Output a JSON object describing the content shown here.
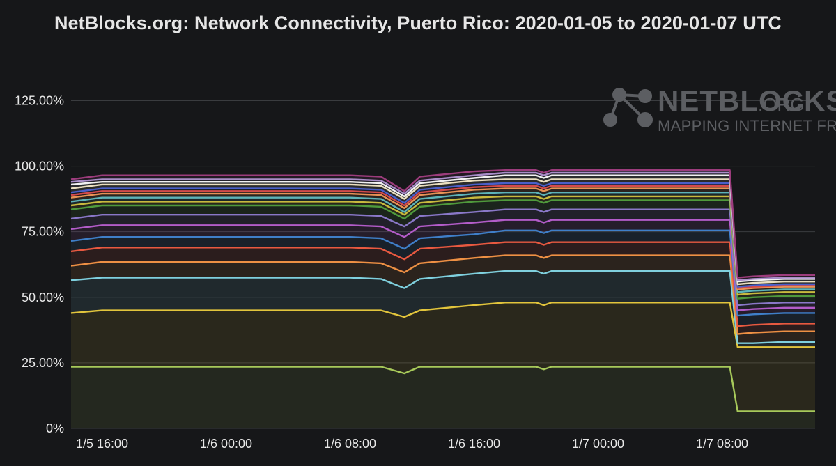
{
  "chart_data": {
    "type": "area",
    "title": "NetBlocks.org: Network Connectivity, Puerto Rico: 2020-01-05 to 2020-01-07 UTC",
    "xlabel": "",
    "ylabel": "",
    "stacked": true,
    "grid": true,
    "legend": "none",
    "x": [
      "1/5 14:00",
      "1/5 16:00",
      "1/6 00:00",
      "1/6 08:00",
      "1/6 10:00",
      "1/6 11:30",
      "1/6 12:30",
      "1/6 16:00",
      "1/6 18:00",
      "1/6 20:00",
      "1/6 20:30",
      "1/6 21:00",
      "1/7 00:00",
      "1/7 08:00",
      "1/7 08:30",
      "1/7 09:00",
      "1/7 10:00",
      "1/7 12:00",
      "1/7 14:00"
    ],
    "x_ticks": [
      "1/5 16:00",
      "1/6 00:00",
      "1/6 08:00",
      "1/6 16:00",
      "1/7 00:00",
      "1/7 08:00"
    ],
    "y_ticks": [
      "0%",
      "25.00%",
      "50.00%",
      "75.00%",
      "100.00%",
      "125.00%"
    ],
    "ylim": [
      0,
      140
    ],
    "series": [
      {
        "color": "#a7c95a",
        "values": [
          23.5,
          23.5,
          23.5,
          23.5,
          23.5,
          21,
          23.5,
          23.5,
          23.5,
          23.5,
          22.5,
          23.5,
          23.5,
          23.5,
          23.5,
          6.5,
          6.5,
          6.5,
          6.5
        ]
      },
      {
        "color": "#e2c53c",
        "values": [
          44,
          45,
          45,
          45,
          45,
          42.5,
          45,
          47,
          48,
          48,
          47,
          48,
          48,
          48,
          48,
          31,
          31,
          31,
          31
        ]
      },
      {
        "color": "#7fd0de",
        "values": [
          56.5,
          57.5,
          57.5,
          57.5,
          57,
          53.5,
          57,
          59,
          60,
          60,
          59,
          60,
          60,
          60,
          60,
          32.5,
          32.5,
          33,
          33
        ]
      },
      {
        "color": "#ee9044",
        "values": [
          62,
          63.5,
          63.5,
          63.5,
          63,
          59.5,
          63,
          65,
          66,
          66,
          65,
          66,
          66,
          66,
          66,
          36,
          36.5,
          37,
          37
        ]
      },
      {
        "color": "#e85940",
        "values": [
          67.5,
          69,
          69,
          69,
          68.5,
          64.5,
          68.5,
          70,
          71,
          71,
          70,
          71,
          71,
          71,
          71,
          39,
          39.5,
          40,
          40
        ]
      },
      {
        "color": "#3f7fc9",
        "values": [
          71.5,
          73,
          73,
          73,
          72.5,
          68.5,
          72.5,
          74,
          75.5,
          75.5,
          74.5,
          75.5,
          75.5,
          75.5,
          75.5,
          43,
          43.5,
          44,
          44
        ]
      },
      {
        "color": "#b35cc9",
        "values": [
          76,
          77.5,
          77.5,
          77.5,
          77,
          73,
          77,
          78.5,
          79.5,
          79.5,
          78.5,
          79.5,
          79.5,
          79.5,
          79.5,
          45,
          45.5,
          46,
          46
        ]
      },
      {
        "color": "#8a78c9",
        "values": [
          80,
          81.5,
          81.5,
          81.5,
          81,
          77,
          81,
          82.5,
          83.5,
          83.5,
          82.5,
          83.5,
          83.5,
          83.5,
          83.5,
          47,
          47.5,
          48,
          48
        ]
      },
      {
        "color": "#4f9a3c",
        "values": [
          83.5,
          85,
          85,
          85,
          84.5,
          80,
          84.5,
          86.5,
          87,
          87,
          86,
          87,
          87,
          87,
          87,
          49.5,
          50,
          50.5,
          50.5
        ]
      },
      {
        "color": "#c9ba3e",
        "values": [
          85,
          86.5,
          86.5,
          86.5,
          86,
          81.5,
          86,
          88,
          88.5,
          88.5,
          87.5,
          88.5,
          88.5,
          88.5,
          88.5,
          51,
          51.5,
          52,
          52
        ]
      },
      {
        "color": "#5db3b8",
        "values": [
          86.5,
          88,
          88,
          88,
          87.5,
          82.5,
          87.5,
          89.5,
          90,
          90,
          89,
          90,
          90,
          90,
          90,
          52,
          52.5,
          53,
          53
        ]
      },
      {
        "color": "#e89255",
        "values": [
          88,
          89.5,
          89.5,
          89.5,
          89,
          84,
          89,
          91,
          91.5,
          91.5,
          90.5,
          91.5,
          91.5,
          91.5,
          91.5,
          53,
          53.5,
          54,
          54
        ]
      },
      {
        "color": "#d44a4a",
        "values": [
          89,
          90.5,
          90.5,
          90.5,
          90,
          85,
          90,
          92,
          92.5,
          92.5,
          91.5,
          92.5,
          92.5,
          92.5,
          92.5,
          53.5,
          54,
          54.5,
          54.5
        ]
      },
      {
        "color": "#4a5fc9",
        "values": [
          90,
          91.5,
          91.5,
          91.5,
          91,
          86,
          91,
          93,
          93.5,
          93.5,
          92.5,
          93.5,
          93.5,
          93.5,
          93.5,
          54,
          54.5,
          55,
          55
        ]
      },
      {
        "color": "#eadfc0",
        "values": [
          91.5,
          93,
          93,
          93,
          92.5,
          87.5,
          92.5,
          94.5,
          95,
          95,
          94,
          95,
          95,
          95,
          95,
          55,
          55.5,
          56,
          56
        ]
      },
      {
        "color": "#f2f2f2",
        "values": [
          93,
          94,
          94,
          94,
          93.5,
          88.5,
          93.5,
          95.5,
          96.5,
          96.5,
          95.5,
          96.5,
          96.5,
          96.5,
          96.5,
          56,
          56.5,
          57,
          57
        ]
      },
      {
        "color": "#a98ec9",
        "values": [
          94,
          95,
          95,
          95,
          94.5,
          89.5,
          94.5,
          96.5,
          97.5,
          97.5,
          96.5,
          97.5,
          97.5,
          97.5,
          97.5,
          56.5,
          57,
          57.5,
          57.5
        ]
      },
      {
        "color": "#9c3c7c",
        "values": [
          95,
          96.5,
          96.5,
          96.5,
          96,
          90.5,
          96,
          98,
          98.5,
          98.5,
          97.5,
          98.5,
          98.5,
          98.5,
          98.5,
          57.5,
          58,
          58.5,
          58.5
        ]
      }
    ]
  },
  "brand": {
    "wordmark": "NETBLOCKS",
    "suffix": ".ORG",
    "tagline": "MAPPING INTERNET FREEDOM"
  }
}
